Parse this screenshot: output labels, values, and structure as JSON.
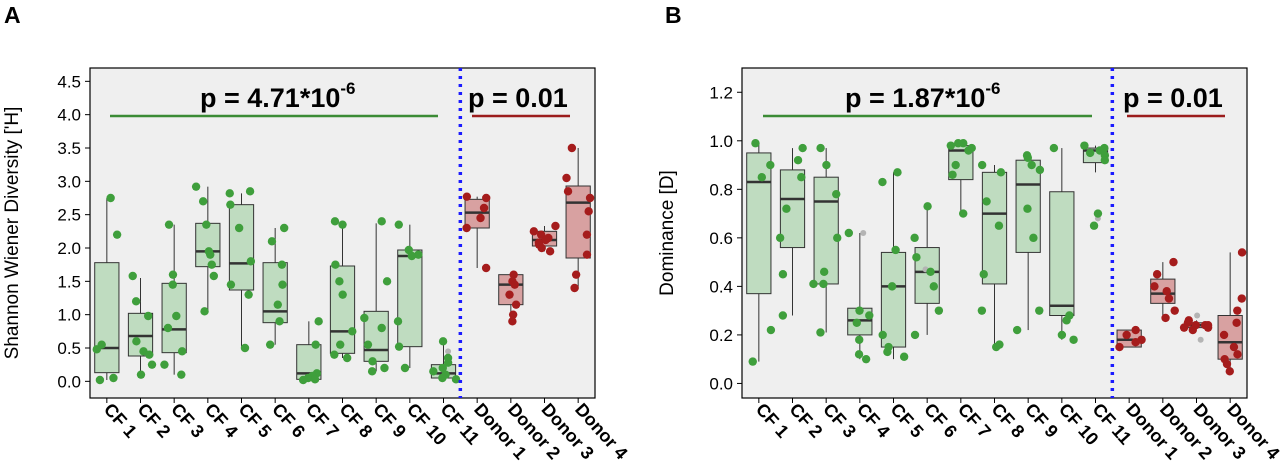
{
  "panels": [
    {
      "label": "A"
    },
    {
      "label": "B"
    }
  ],
  "chart_data": [
    {
      "type": "box",
      "panel": "A",
      "ylabel": "Shannon Wiener Diversity ['H]",
      "ylim": [
        -0.25,
        4.7
      ],
      "yticks": [
        0.0,
        0.5,
        1.0,
        1.5,
        2.0,
        2.5,
        3.0,
        3.5,
        4.0,
        4.5
      ],
      "ytick_labels": [
        "0.0",
        "0.5",
        "1.0",
        "1.5",
        "2.0",
        "2.5",
        "3.0",
        "3.5",
        "4.0",
        "4.5"
      ],
      "categories": [
        "CF 1",
        "CF 2",
        "CF 3",
        "CF 4",
        "CF 5",
        "CF 6",
        "CF 7",
        "CF 8",
        "CF 9",
        "CF 10",
        "CF 11",
        "Donor 1",
        "Donor 2",
        "Donor 3",
        "Donor 4"
      ],
      "groups": [
        "cf",
        "cf",
        "cf",
        "cf",
        "cf",
        "cf",
        "cf",
        "cf",
        "cf",
        "cf",
        "cf",
        "donor",
        "donor",
        "donor",
        "donor"
      ],
      "boxes": [
        {
          "min": 0.02,
          "q1": 0.13,
          "median": 0.5,
          "q3": 1.78,
          "max": 2.75
        },
        {
          "min": 0.1,
          "q1": 0.38,
          "median": 0.68,
          "q3": 1.02,
          "max": 1.55
        },
        {
          "min": 0.1,
          "q1": 0.43,
          "median": 0.78,
          "q3": 1.47,
          "max": 2.35
        },
        {
          "min": 1.05,
          "q1": 1.72,
          "median": 1.95,
          "q3": 2.37,
          "max": 2.92
        },
        {
          "min": 0.48,
          "q1": 1.37,
          "median": 1.77,
          "q3": 2.65,
          "max": 2.82
        },
        {
          "min": 0.55,
          "q1": 0.88,
          "median": 1.05,
          "q3": 1.78,
          "max": 2.3
        },
        {
          "min": 0.02,
          "q1": 0.03,
          "median": 0.12,
          "q3": 0.55,
          "max": 0.9
        },
        {
          "min": 0.35,
          "q1": 0.42,
          "median": 0.75,
          "q3": 1.73,
          "max": 2.4
        },
        {
          "min": 0.15,
          "q1": 0.3,
          "median": 0.47,
          "q3": 1.05,
          "max": 2.37
        },
        {
          "min": 0.2,
          "q1": 0.52,
          "median": 1.88,
          "q3": 1.97,
          "max": 2.35
        },
        {
          "min": 0.03,
          "q1": 0.05,
          "median": 0.12,
          "q3": 0.25,
          "max": 0.6
        },
        {
          "min": 1.7,
          "q1": 2.3,
          "median": 2.53,
          "q3": 2.73,
          "max": 2.77
        },
        {
          "min": 0.9,
          "q1": 1.15,
          "median": 1.45,
          "q3": 1.6,
          "max": 1.6
        },
        {
          "min": 1.95,
          "q1": 2.03,
          "median": 2.12,
          "q3": 2.25,
          "max": 2.33
        },
        {
          "min": 1.38,
          "q1": 1.85,
          "median": 2.68,
          "q3": 2.93,
          "max": 3.5
        }
      ],
      "points": [
        [
          2.75,
          2.2,
          0.55,
          0.48,
          0.02,
          0.05
        ],
        [
          1.58,
          1.2,
          0.98,
          0.6,
          0.45,
          0.4,
          0.25,
          0.1
        ],
        [
          2.35,
          1.6,
          1.45,
          0.98,
          0.8,
          0.45,
          0.25,
          0.1
        ],
        [
          2.92,
          2.7,
          2.35,
          1.95,
          1.9,
          1.75,
          1.58,
          1.05
        ],
        [
          2.85,
          2.82,
          2.65,
          2.3,
          1.8,
          1.45,
          1.3,
          0.5
        ],
        [
          2.3,
          2.1,
          1.75,
          1.45,
          1.15,
          0.9,
          0.55
        ],
        [
          0.9,
          0.55,
          0.12,
          0.08,
          0.05,
          0.03,
          0.02
        ],
        [
          2.4,
          2.35,
          1.75,
          1.5,
          1.3,
          0.75,
          0.55,
          0.4,
          0.35
        ],
        [
          2.4,
          1.5,
          0.95,
          0.8,
          0.55,
          0.3,
          0.2,
          0.15
        ],
        [
          2.35,
          1.97,
          1.9,
          1.88,
          0.9,
          0.52,
          0.2
        ],
        [
          0.6,
          0.35,
          0.28,
          0.2,
          0.15,
          0.1,
          0.05,
          0.03
        ],
        [
          2.77,
          2.75,
          2.6,
          2.45,
          2.3,
          1.7
        ],
        [
          1.6,
          1.5,
          1.45,
          1.3,
          1.15,
          1.0,
          0.9
        ],
        [
          2.33,
          2.25,
          2.2,
          2.15,
          2.12,
          2.08,
          2.05,
          2.0,
          1.95
        ],
        [
          3.5,
          3.05,
          2.85,
          2.75,
          2.55,
          2.2,
          1.9,
          1.6,
          1.4
        ]
      ],
      "outliers": [
        [],
        [],
        [],
        [],
        [],
        [],
        [],
        [],
        [],
        [],
        [
          0.45
        ],
        [],
        [],
        [],
        []
      ],
      "annotations": [
        {
          "prefix": "p = 4.71*10",
          "exponent": "-6",
          "group": "cf"
        },
        {
          "prefix": "p = 0.01",
          "exponent": "",
          "group": "donor"
        }
      ],
      "colors": {
        "cf_fill": "#bfdcc0",
        "cf_point": "#3f9f3c",
        "donor_fill": "#d8a1a1",
        "donor_point": "#a51c1c",
        "cf_line": "#3b8b35",
        "donor_line": "#9b1c1c",
        "divider": "#1a1aff",
        "background": "#efefef",
        "outlier": "#b4b4b4"
      }
    },
    {
      "type": "box",
      "panel": "B",
      "ylabel": "Dominance [D]",
      "ylim": [
        -0.06,
        1.3
      ],
      "yticks": [
        0.0,
        0.2,
        0.4,
        0.6,
        0.8,
        1.0,
        1.2
      ],
      "ytick_labels": [
        "0.0",
        "0.2",
        "0.4",
        "0.6",
        "0.8",
        "1.0",
        "1.2"
      ],
      "categories": [
        "CF 1",
        "CF 2",
        "CF 3",
        "CF 4",
        "CF 5",
        "CF 6",
        "CF 7",
        "CF 8",
        "CF 9",
        "CF 10",
        "CF 11",
        "Donor 1",
        "Donor 2",
        "Donor 3",
        "Donor 4"
      ],
      "groups": [
        "cf",
        "cf",
        "cf",
        "cf",
        "cf",
        "cf",
        "cf",
        "cf",
        "cf",
        "cf",
        "cf",
        "donor",
        "donor",
        "donor",
        "donor"
      ],
      "boxes": [
        {
          "min": 0.09,
          "q1": 0.37,
          "median": 0.83,
          "q3": 0.95,
          "max": 0.99
        },
        {
          "min": 0.28,
          "q1": 0.56,
          "median": 0.76,
          "q3": 0.88,
          "max": 0.97
        },
        {
          "min": 0.21,
          "q1": 0.41,
          "median": 0.75,
          "q3": 0.85,
          "max": 0.97
        },
        {
          "min": 0.1,
          "q1": 0.2,
          "median": 0.26,
          "q3": 0.31,
          "max": 0.62
        },
        {
          "min": 0.1,
          "q1": 0.15,
          "median": 0.4,
          "q3": 0.54,
          "max": 0.87
        },
        {
          "min": 0.2,
          "q1": 0.33,
          "median": 0.46,
          "q3": 0.56,
          "max": 0.73
        },
        {
          "min": 0.7,
          "q1": 0.84,
          "median": 0.96,
          "q3": 0.98,
          "max": 0.99
        },
        {
          "min": 0.15,
          "q1": 0.41,
          "median": 0.7,
          "q3": 0.87,
          "max": 0.9
        },
        {
          "min": 0.22,
          "q1": 0.54,
          "median": 0.82,
          "q3": 0.92,
          "max": 0.94
        },
        {
          "min": 0.18,
          "q1": 0.28,
          "median": 0.32,
          "q3": 0.79,
          "max": 0.97
        },
        {
          "min": 0.87,
          "q1": 0.91,
          "median": 0.96,
          "q3": 0.97,
          "max": 0.98
        },
        {
          "min": 0.15,
          "q1": 0.15,
          "median": 0.18,
          "q3": 0.22,
          "max": 0.22
        },
        {
          "min": 0.27,
          "q1": 0.33,
          "median": 0.37,
          "q3": 0.43,
          "max": 0.5
        },
        {
          "min": 0.23,
          "q1": 0.23,
          "median": 0.24,
          "q3": 0.25,
          "max": 0.26
        },
        {
          "min": 0.05,
          "q1": 0.1,
          "median": 0.17,
          "q3": 0.28,
          "max": 0.54
        }
      ],
      "points": [
        [
          0.99,
          0.9,
          0.85,
          0.22,
          0.09
        ],
        [
          0.97,
          0.92,
          0.85,
          0.72,
          0.6,
          0.45,
          0.28
        ],
        [
          0.97,
          0.9,
          0.78,
          0.6,
          0.46,
          0.41,
          0.41,
          0.21
        ],
        [
          0.62,
          0.3,
          0.28,
          0.25,
          0.18,
          0.12,
          0.1
        ],
        [
          0.87,
          0.83,
          0.55,
          0.4,
          0.2,
          0.15,
          0.13,
          0.11
        ],
        [
          0.73,
          0.6,
          0.52,
          0.46,
          0.4,
          0.3,
          0.2
        ],
        [
          0.99,
          0.99,
          0.98,
          0.97,
          0.96,
          0.9,
          0.86,
          0.7
        ],
        [
          0.9,
          0.87,
          0.75,
          0.65,
          0.45,
          0.3,
          0.16,
          0.15
        ],
        [
          0.94,
          0.93,
          0.9,
          0.88,
          0.72,
          0.6,
          0.3,
          0.22
        ],
        [
          0.97,
          0.28,
          0.26,
          0.2,
          0.18
        ],
        [
          0.98,
          0.97,
          0.96,
          0.95,
          0.94,
          0.92,
          0.7,
          0.65
        ],
        [
          0.22,
          0.2,
          0.18,
          0.17,
          0.15
        ],
        [
          0.5,
          0.45,
          0.4,
          0.38,
          0.35,
          0.3,
          0.27
        ],
        [
          0.26,
          0.25,
          0.24,
          0.24,
          0.24,
          0.23,
          0.23,
          0.22
        ],
        [
          0.54,
          0.35,
          0.3,
          0.25,
          0.2,
          0.15,
          0.12,
          0.1,
          0.08,
          0.05
        ]
      ],
      "outliers": [
        [],
        [],
        [],
        [
          0.62
        ],
        [],
        [
          0.47
        ],
        [],
        [],
        [],
        [],
        [
          0.68
        ],
        [],
        [],
        [
          0.28,
          0.18
        ],
        []
      ],
      "annotations": [
        {
          "prefix": "p  = 1.87*10",
          "exponent": "-6",
          "group": "cf"
        },
        {
          "prefix": "p = 0.01",
          "exponent": "",
          "group": "donor"
        }
      ],
      "colors": {
        "cf_fill": "#bfdcc0",
        "cf_point": "#3f9f3c",
        "donor_fill": "#d8a1a1",
        "donor_point": "#a51c1c",
        "cf_line": "#3b8b35",
        "donor_line": "#9b1c1c",
        "divider": "#1a1aff",
        "background": "#efefef",
        "outlier": "#b4b4b4"
      }
    }
  ]
}
